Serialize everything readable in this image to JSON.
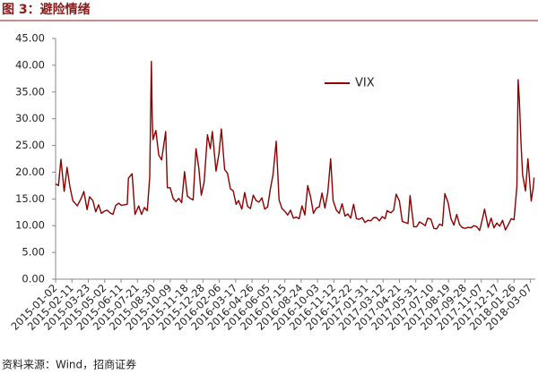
{
  "chart_data": {
    "type": "line",
    "title": "图 3：避险情绪",
    "source": "资料来源：Wind，招商证券",
    "x": [
      "2015-01-02",
      "2015-01-09",
      "2015-01-15",
      "2015-01-23",
      "2015-01-30",
      "2015-02-06",
      "2015-02-13",
      "2015-02-24",
      "2015-03-06",
      "2015-03-12",
      "2015-03-20",
      "2015-03-26",
      "2015-04-03",
      "2015-04-10",
      "2015-04-17",
      "2015-04-24",
      "2015-05-01",
      "2015-05-08",
      "2015-05-15",
      "2015-05-22",
      "2015-05-29",
      "2015-06-05",
      "2015-06-12",
      "2015-06-19",
      "2015-06-26",
      "2015-06-29",
      "2015-07-08",
      "2015-07-15",
      "2015-07-24",
      "2015-07-31",
      "2015-08-07",
      "2015-08-14",
      "2015-08-20",
      "2015-08-24",
      "2015-08-26",
      "2015-08-28",
      "2015-09-04",
      "2015-09-11",
      "2015-09-18",
      "2015-09-28",
      "2015-10-02",
      "2015-10-09",
      "2015-10-16",
      "2015-10-23",
      "2015-10-30",
      "2015-11-06",
      "2015-11-13",
      "2015-11-20",
      "2015-11-27",
      "2015-12-04",
      "2015-12-11",
      "2015-12-18",
      "2015-12-24",
      "2015-12-31",
      "2016-01-08",
      "2016-01-15",
      "2016-01-20",
      "2016-01-29",
      "2016-02-05",
      "2016-02-11",
      "2016-02-19",
      "2016-02-26",
      "2016-03-04",
      "2016-03-11",
      "2016-03-18",
      "2016-03-24",
      "2016-04-01",
      "2016-04-08",
      "2016-04-15",
      "2016-04-22",
      "2016-04-29",
      "2016-05-06",
      "2016-05-13",
      "2016-05-20",
      "2016-05-27",
      "2016-06-03",
      "2016-06-10",
      "2016-06-16",
      "2016-06-24",
      "2016-07-01",
      "2016-07-08",
      "2016-07-15",
      "2016-07-22",
      "2016-07-29",
      "2016-08-05",
      "2016-08-12",
      "2016-08-19",
      "2016-08-26",
      "2016-09-02",
      "2016-09-09",
      "2016-09-16",
      "2016-09-23",
      "2016-09-30",
      "2016-10-07",
      "2016-10-14",
      "2016-10-21",
      "2016-10-28",
      "2016-11-04",
      "2016-11-10",
      "2016-11-18",
      "2016-11-25",
      "2016-12-02",
      "2016-12-09",
      "2016-12-16",
      "2016-12-23",
      "2016-12-30",
      "2017-01-06",
      "2017-01-13",
      "2017-01-20",
      "2017-01-27",
      "2017-02-03",
      "2017-02-10",
      "2017-02-17",
      "2017-02-24",
      "2017-03-03",
      "2017-03-10",
      "2017-03-17",
      "2017-03-22",
      "2017-03-31",
      "2017-04-07",
      "2017-04-13",
      "2017-04-21",
      "2017-04-28",
      "2017-05-05",
      "2017-05-12",
      "2017-05-17",
      "2017-05-26",
      "2017-06-02",
      "2017-06-09",
      "2017-06-16",
      "2017-06-23",
      "2017-06-29",
      "2017-07-07",
      "2017-07-14",
      "2017-07-21",
      "2017-07-28",
      "2017-08-04",
      "2017-08-10",
      "2017-08-18",
      "2017-08-25",
      "2017-09-01",
      "2017-09-08",
      "2017-09-15",
      "2017-09-22",
      "2017-09-29",
      "2017-10-06",
      "2017-10-13",
      "2017-10-20",
      "2017-10-27",
      "2017-11-03",
      "2017-11-10",
      "2017-11-15",
      "2017-11-24",
      "2017-12-01",
      "2017-12-08",
      "2017-12-15",
      "2017-12-22",
      "2017-12-29",
      "2018-01-05",
      "2018-01-12",
      "2018-01-19",
      "2018-01-26",
      "2018-02-02",
      "2018-02-05",
      "2018-02-08",
      "2018-02-12",
      "2018-02-16",
      "2018-02-23",
      "2018-03-01",
      "2018-03-09",
      "2018-03-14",
      "2018-03-16"
    ],
    "series": [
      {
        "name": "VIX",
        "color": "#8b0000",
        "values": [
          17.8,
          17.5,
          22.4,
          16.4,
          20.9,
          17.3,
          14.7,
          13.7,
          15.2,
          16.4,
          13.0,
          15.4,
          14.7,
          12.6,
          13.9,
          12.3,
          12.7,
          12.9,
          12.4,
          12.1,
          13.8,
          14.2,
          13.8,
          13.9,
          14.0,
          18.9,
          19.7,
          12.1,
          13.7,
          12.1,
          13.4,
          12.8,
          19.1,
          40.7,
          30.3,
          26.1,
          27.8,
          23.2,
          22.3,
          27.6,
          17.1,
          17.1,
          15.1,
          14.5,
          15.1,
          14.3,
          20.1,
          15.5,
          15.1,
          14.8,
          24.4,
          20.7,
          15.7,
          18.2,
          27.0,
          24.4,
          27.6,
          20.2,
          23.4,
          28.1,
          20.5,
          19.8,
          16.9,
          16.5,
          14.0,
          14.7,
          13.1,
          16.2,
          13.6,
          13.2,
          15.7,
          14.7,
          14.4,
          15.2,
          13.1,
          13.5,
          17.0,
          19.4,
          25.8,
          14.8,
          13.2,
          12.7,
          12.0,
          12.9,
          11.4,
          11.6,
          11.3,
          13.7,
          12.0,
          17.5,
          15.4,
          12.3,
          13.3,
          13.5,
          16.1,
          13.3,
          16.2,
          22.5,
          14.7,
          12.9,
          12.3,
          14.1,
          11.8,
          12.2,
          11.4,
          14.0,
          11.3,
          11.2,
          11.5,
          10.6,
          11.0,
          10.9,
          11.5,
          11.5,
          10.9,
          11.7,
          11.3,
          12.8,
          12.4,
          12.9,
          15.9,
          14.6,
          10.8,
          10.6,
          10.4,
          15.6,
          9.8,
          9.8,
          10.7,
          10.4,
          10.0,
          11.4,
          11.2,
          9.5,
          9.4,
          10.3,
          10.0,
          16.0,
          14.3,
          11.3,
          10.1,
          12.1,
          10.2,
          9.6,
          9.5,
          9.7,
          9.6,
          10.0,
          9.8,
          9.1,
          11.3,
          13.1,
          9.7,
          11.4,
          9.6,
          10.5,
          9.9,
          11.0,
          9.2,
          10.2,
          11.3,
          11.1,
          17.3,
          37.3,
          33.5,
          25.6,
          19.5,
          16.5,
          22.5,
          14.6,
          17.2,
          19.0
        ]
      }
    ],
    "xlim": [
      "2015-01-02",
      "2018-03-19"
    ],
    "xticks": [
      "2015-01-02",
      "2015-02-11",
      "2015-03-23",
      "2015-05-02",
      "2015-06-11",
      "2015-07-21",
      "2015-08-30",
      "2015-10-09",
      "2015-11-18",
      "2015-12-28",
      "2016-02-06",
      "2016-03-17",
      "2016-04-26",
      "2016-06-05",
      "2016-07-15",
      "2016-08-24",
      "2016-10-03",
      "2016-11-12",
      "2016-12-22",
      "2017-01-31",
      "2017-03-12",
      "2017-04-21",
      "2017-05-31",
      "2017-07-10",
      "2017-08-19",
      "2017-09-28",
      "2017-11-07",
      "2017-12-17",
      "2018-01-26",
      "2018-03-07"
    ],
    "ylim": [
      0,
      45
    ],
    "yticks": [
      {
        "value": 0,
        "label": "0.00"
      },
      {
        "value": 5,
        "label": "5.00"
      },
      {
        "value": 10,
        "label": "10.00"
      },
      {
        "value": 15,
        "label": "15.00"
      },
      {
        "value": 20,
        "label": "20.00"
      },
      {
        "value": 25,
        "label": "25.00"
      },
      {
        "value": 30,
        "label": "30.00"
      },
      {
        "value": 35,
        "label": "35.00"
      },
      {
        "value": 40,
        "label": "40.00"
      },
      {
        "value": 45,
        "label": "45.00"
      }
    ]
  }
}
